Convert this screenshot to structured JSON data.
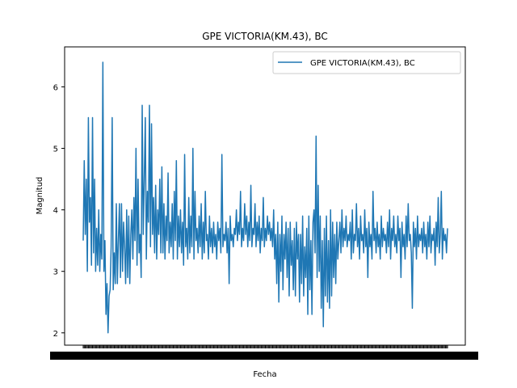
{
  "chart_data": {
    "type": "line",
    "title": "GPE VICTORIA(KM.43), BC",
    "xlabel": "Fecha",
    "ylabel": "Magnitud",
    "ylim": [
      1.8,
      6.65
    ],
    "yticks": [
      2,
      3,
      4,
      5,
      6
    ],
    "grid": false,
    "legend_position": "top-right",
    "series": [
      {
        "name": "GPE VICTORIA(KM.43), BC",
        "color": "#1f77b4",
        "values": [
          3.5,
          4.8,
          3.6,
          4.5,
          3.0,
          5.5,
          3.8,
          4.2,
          3.1,
          5.5,
          3.3,
          4.5,
          3.0,
          3.7,
          3.1,
          4.0,
          3.0,
          3.6,
          3.2,
          6.4,
          3.0,
          3.5,
          2.3,
          2.8,
          2.0,
          2.6,
          2.7,
          3.4,
          5.5,
          2.7,
          3.3,
          2.8,
          4.1,
          2.8,
          3.5,
          4.1,
          2.9,
          4.1,
          3.0,
          3.8,
          3.4,
          2.8,
          4.0,
          2.9,
          3.9,
          2.8,
          3.6,
          4.0,
          3.2,
          4.2,
          3.5,
          5.0,
          3.1,
          4.5,
          3.3,
          3.6,
          2.9,
          5.7,
          3.6,
          4.5,
          5.5,
          3.2,
          4.3,
          3.8,
          5.7,
          3.4,
          5.4,
          3.6,
          4.2,
          3.3,
          4.4,
          3.2,
          4.0,
          3.6,
          4.5,
          3.3,
          4.7,
          3.3,
          4.1,
          3.2,
          3.9,
          3.5,
          4.6,
          3.3,
          3.8,
          3.4,
          4.1,
          3.2,
          4.3,
          3.5,
          4.8,
          3.2,
          3.9,
          3.4,
          4.0,
          3.3,
          3.8,
          3.1,
          4.9,
          3.4,
          3.7,
          3.2,
          4.2,
          3.3,
          3.9,
          3.4,
          5.0,
          3.2,
          4.3,
          3.5,
          3.7,
          3.3,
          3.9,
          3.4,
          4.1,
          3.2,
          3.8,
          3.3,
          4.3,
          3.5,
          3.6,
          3.2,
          3.9,
          3.4,
          3.7,
          3.3,
          3.8,
          3.4,
          3.6,
          3.2,
          3.8,
          3.5,
          3.7,
          3.3,
          4.9,
          3.4,
          3.6,
          3.5,
          3.8,
          3.3,
          3.7,
          2.8,
          3.9,
          3.5,
          3.6,
          3.4,
          3.7,
          3.6,
          4.0,
          3.5,
          3.8,
          3.6,
          4.3,
          3.4,
          3.7,
          3.5,
          4.1,
          3.6,
          3.9,
          3.4,
          3.8,
          3.5,
          4.4,
          3.4,
          3.7,
          3.6,
          4.1,
          3.4,
          3.8,
          3.5,
          3.9,
          3.3,
          3.7,
          3.5,
          4.2,
          3.4,
          3.7,
          3.5,
          3.9,
          3.6,
          3.8,
          3.5,
          3.7,
          3.4,
          4.0,
          3.2,
          3.6,
          2.8,
          3.8,
          2.5,
          3.6,
          3.0,
          3.9,
          2.7,
          3.6,
          3.2,
          3.8,
          2.9,
          3.7,
          2.6,
          3.8,
          3.1,
          3.5,
          2.7,
          3.7,
          2.6,
          3.8,
          3.2,
          3.6,
          2.5,
          3.6,
          2.8,
          3.9,
          2.6,
          3.4,
          2.9,
          3.7,
          2.3,
          3.9,
          2.7,
          3.5,
          2.3,
          3.8,
          4.0,
          3.3,
          5.2,
          2.9,
          4.4,
          3.0,
          3.9,
          2.4,
          3.5,
          2.1,
          3.7,
          2.6,
          3.9,
          2.5,
          3.5,
          2.4,
          4.0,
          2.6,
          3.8,
          2.9,
          3.6,
          2.8,
          3.8,
          3.2,
          3.5,
          3.8,
          3.3,
          4.0,
          3.4,
          3.7,
          3.5,
          3.9,
          3.4,
          3.6,
          3.5,
          3.8,
          3.2,
          4.0,
          3.3,
          3.6,
          3.5,
          4.1,
          3.4,
          3.7,
          3.2,
          3.9,
          3.5,
          3.6,
          3.3,
          4.0,
          3.4,
          3.7,
          2.9,
          3.8,
          3.4,
          3.6,
          3.2,
          4.3,
          3.5,
          3.7,
          3.3,
          3.8,
          3.4,
          3.6,
          3.2,
          3.9,
          3.4,
          3.7,
          3.5,
          3.6,
          3.3,
          3.8,
          3.4,
          4.0,
          3.2,
          3.7,
          3.5,
          3.9,
          3.4,
          3.6,
          3.3,
          3.9,
          3.5,
          3.7,
          2.9,
          3.8,
          3.4,
          3.6,
          3.2,
          3.9,
          3.4,
          4.1,
          3.5,
          3.6,
          3.3,
          2.4,
          3.8,
          3.4,
          3.7,
          3.2,
          3.9,
          3.4,
          3.6,
          3.5,
          3.7,
          3.3,
          3.8,
          3.4,
          3.6,
          3.2,
          3.8,
          3.4,
          3.9,
          3.3,
          3.6,
          3.5,
          3.7,
          3.1,
          3.8,
          3.4,
          4.2,
          3.3,
          3.6,
          4.3,
          3.2,
          3.7,
          3.5,
          3.6,
          3.3,
          3.7
        ]
      }
    ]
  }
}
